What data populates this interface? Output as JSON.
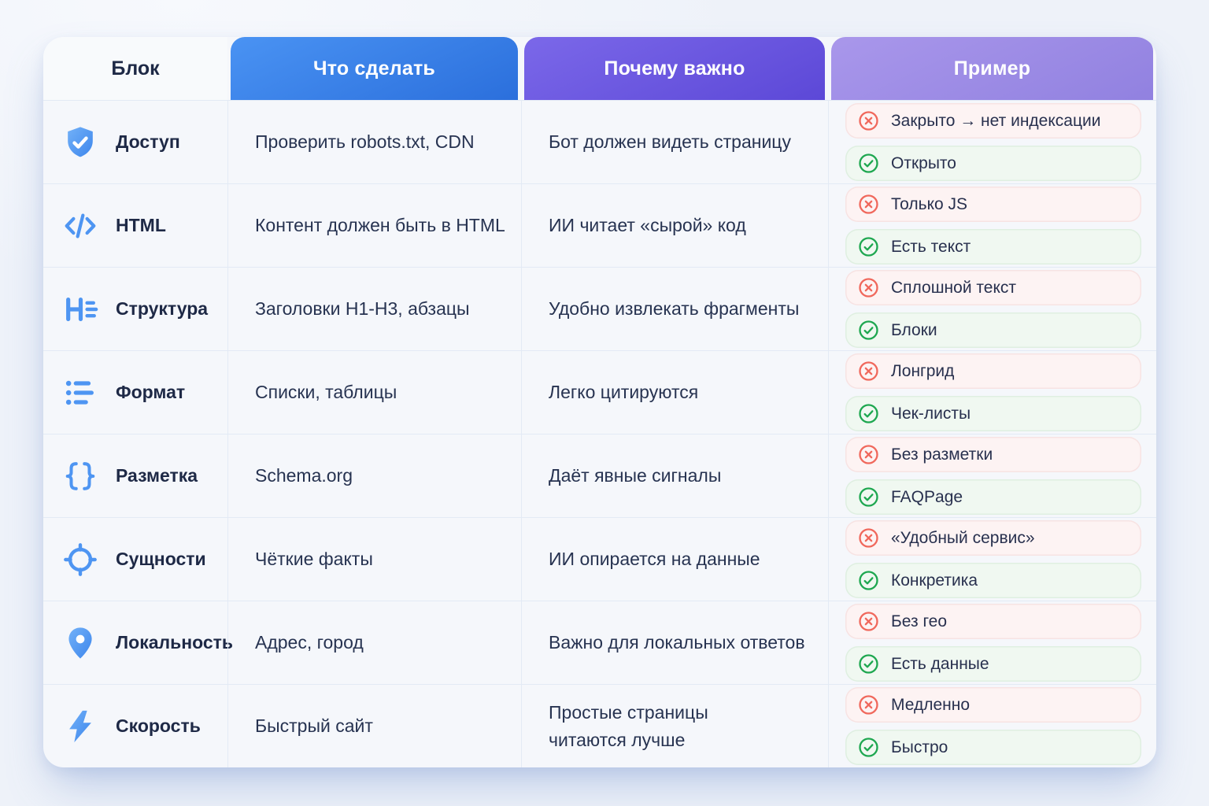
{
  "colors": {
    "page_bg": "#eef2f9",
    "card_bg": "#f5f7fb",
    "text_dark": "#1e2946",
    "blue_header_start": "#4a93f3",
    "blue_header_end": "#2b6fdc",
    "purple_header_start": "#7b68e9",
    "purple_header_end": "#5c48d7",
    "lavender_header_start": "#a997eb",
    "lavender_header_end": "#9181e0",
    "icon_blue": "#4e95f2",
    "bad_red": "#f0685c",
    "good_green": "#1ea750",
    "bad_badge_bg": "#fdf3f3",
    "good_badge_bg": "#f0f8f1"
  },
  "table": {
    "headers": [
      {
        "label": "Блок",
        "variant": "plain"
      },
      {
        "label": "Что сделать",
        "variant": "blue"
      },
      {
        "label": "Почему важно",
        "variant": "purple"
      },
      {
        "label": "Пример",
        "variant": "lavender"
      }
    ],
    "rows": [
      {
        "block": {
          "icon": "shield-check-icon",
          "label": "Доступ"
        },
        "what": "Проверить robots.txt, CDN",
        "why": "Бот должен видеть страницу",
        "bad": "Закрыто → нет индексации",
        "good": "Открыто"
      },
      {
        "block": {
          "icon": "code-icon",
          "label": "HTML"
        },
        "what": "Контент должен быть в HTML",
        "why": "ИИ читает «сырой» код",
        "bad": "Только JS",
        "good": "Есть текст"
      },
      {
        "block": {
          "icon": "heading-structure-icon",
          "label": "Структура"
        },
        "what": "Заголовки H1-H3, абзацы",
        "why": "Удобно извлекать фрагменты",
        "bad": "Сплошной текст",
        "good": "Блоки"
      },
      {
        "block": {
          "icon": "list-icon",
          "label": "Формат"
        },
        "what": "Списки, таблицы",
        "why": "Легко цитируются",
        "bad": "Лонгрид",
        "good": "Чек-листы"
      },
      {
        "block": {
          "icon": "curly-braces-icon",
          "label": "Разметка"
        },
        "what": "Schema.org",
        "why": "Даёт явные сигналы",
        "bad": "Без разметки",
        "good": "FAQPage"
      },
      {
        "block": {
          "icon": "target-icon",
          "label": "Сущности"
        },
        "what": "Чёткие факты",
        "why": "ИИ опирается на данные",
        "bad": "«Удобный сервис»",
        "good": "Конкретика"
      },
      {
        "block": {
          "icon": "map-pin-icon",
          "label": "Локальность"
        },
        "what": "Адрес, город",
        "why": "Важно для локальных ответов",
        "bad": "Без гео",
        "good": "Есть данные"
      },
      {
        "block": {
          "icon": "lightning-icon",
          "label": "Скорость"
        },
        "what": "Быстрый сайт",
        "why": "Простые страницы\nчитаются лучше",
        "bad": "Медленно",
        "good": "Быстро"
      }
    ]
  }
}
